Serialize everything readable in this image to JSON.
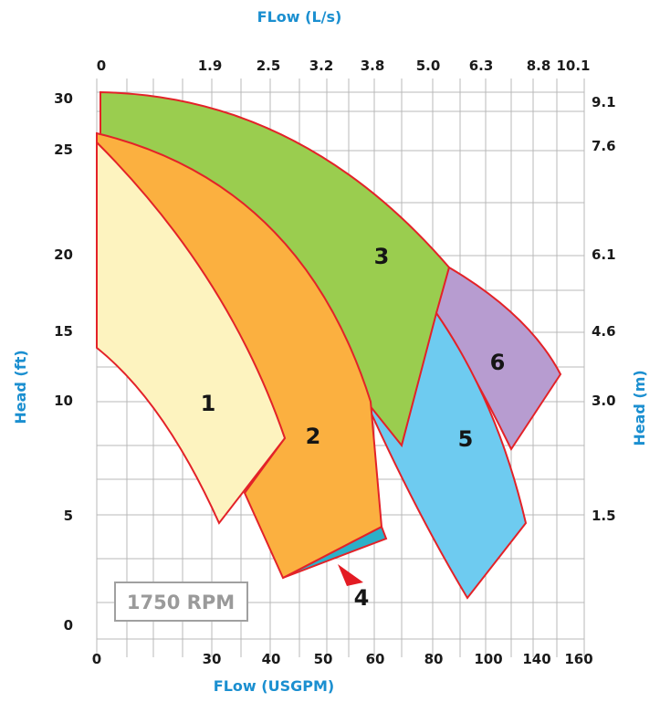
{
  "chart_data": {
    "type": "area",
    "subtitle": "1750 RPM",
    "x_top_label": "FLow (L/s)",
    "x_bottom_label": "FLow  (USGPM)",
    "y_left_label": "Head (ft)",
    "y_right_label": "Head (m)",
    "x_ticks_top": [
      "0",
      "1.9",
      "2.5",
      "3.2",
      "3.8",
      "5.0",
      "6.3",
      "8.8",
      "10.1"
    ],
    "x_ticks_bottom": [
      "0",
      "30",
      "40",
      "50",
      "60",
      "80",
      "100",
      "140",
      "160"
    ],
    "y_ticks_left": [
      "0",
      "5",
      "10",
      "15",
      "20",
      "25",
      "30"
    ],
    "y_ticks_right": [
      "1.5",
      "3.0",
      "4.6",
      "6.1",
      "7.6",
      "9.1"
    ],
    "grid": true,
    "regions": [
      {
        "label": "1",
        "color": "#fdf3bf"
      },
      {
        "label": "2",
        "color": "#fbb040"
      },
      {
        "label": "3",
        "color": "#9acd4f"
      },
      {
        "label": "4",
        "color": "#2cb0c8"
      },
      {
        "label": "5",
        "color": "#6ecbf0"
      },
      {
        "label": "6",
        "color": "#b79cd0"
      }
    ],
    "outline_color": "#e32228",
    "pointer_color": "#e31b23"
  }
}
